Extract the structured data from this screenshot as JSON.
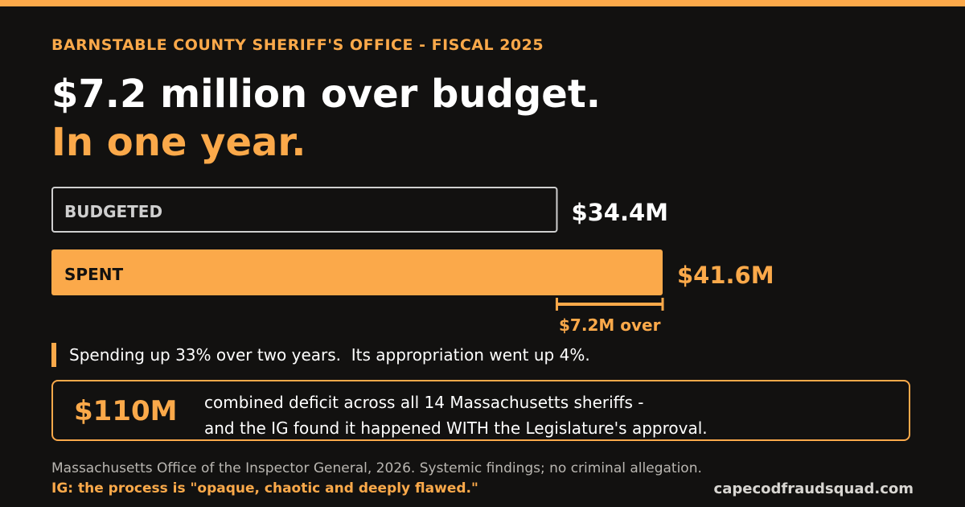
{
  "kicker": "BARNSTABLE COUNTY SHERIFF'S OFFICE - FISCAL 2025",
  "headline": "$7.2 million over budget.",
  "headline_accent": "In one year.",
  "chart_data": {
    "type": "bar",
    "categories": [
      "BUDGETED",
      "SPENT"
    ],
    "values": [
      34.4,
      41.6
    ],
    "value_labels": [
      "$34.4M",
      "$41.6M"
    ],
    "difference_label": "$7.2M over",
    "colors": {
      "budgeted": "#121110",
      "budgeted_border": "#cfcfcf",
      "spent": "#fba94a"
    }
  },
  "callout": "Spending up 33% over two years.  Its appropriation went up 4%.",
  "deficit": {
    "figure": "$110M",
    "line1": "combined deficit across all 14 Massachusetts sheriffs -",
    "line2": "and the IG found it happened WITH the Legislature's approval."
  },
  "footer": {
    "source": "Massachusetts Office of the Inspector General, 2026. Systemic findings; no criminal allegation.",
    "quote": "IG: the process is \"opaque, chaotic and deeply flawed.\"",
    "site": "capecodfraudsquad.com"
  },
  "colors": {
    "accent": "#fba94a",
    "background": "#121110",
    "text": "#ffffff"
  }
}
